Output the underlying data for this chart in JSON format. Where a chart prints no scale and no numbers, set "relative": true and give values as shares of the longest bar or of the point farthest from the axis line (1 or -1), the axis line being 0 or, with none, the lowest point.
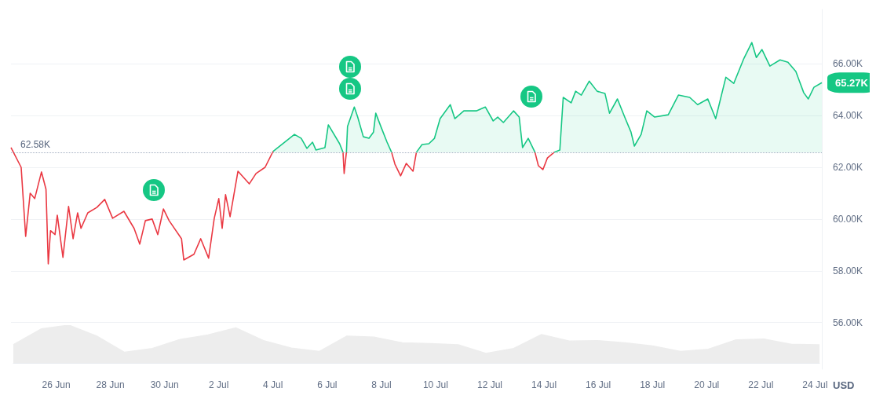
{
  "chart_data": [
    {
      "type": "area",
      "ylabel": "USD",
      "marker": "none",
      "grid": "y",
      "x": [
        "--06-24T08:00",
        "--06-24T17:00",
        "--06-24T21:00",
        "--06-25T01:00",
        "--06-25T05:00",
        "--06-25T11:00",
        "--06-25T15:00",
        "--06-25T17:00",
        "--06-25T19:00",
        "--06-25T23:00",
        "--06-26T01:00",
        "--06-26T06:00",
        "--06-26T11:00",
        "--06-26T15:00",
        "--06-26T19:00",
        "--06-26T22:00",
        "--06-27T04:00",
        "--06-27T12:00",
        "--06-27T19:00",
        "--06-28T02:00",
        "--06-28T12:00",
        "--06-28T21:00",
        "--06-29T02:00",
        "--06-29T07:00",
        "--06-29T13:00",
        "--06-29T18:00",
        "--06-29T23:00",
        "--06-30T04:00",
        "--06-30T15:00",
        "--06-30T17:00",
        "--07-01T02:00",
        "--07-01T08:00",
        "--07-01T15:00",
        "--07-01T20:00",
        "--07-02T00:00",
        "--07-02T03:00",
        "--07-02T06:00",
        "--07-02T10:00",
        "--07-02T17:00",
        "--07-03T03:00",
        "--07-03T09:00",
        "--07-03T17:00",
        "--07-04T00:00",
        "--07-04T19:00",
        "--07-05T01:00",
        "--07-05T06:00",
        "--07-05T11:00",
        "--07-05T14:00",
        "--07-05T22:00",
        "--07-06T01:00",
        "--07-06T11:00",
        "--07-06T14:00",
        "--07-06T15:00",
        "--07-06T17:00",
        "--07-06T18:00",
        "--07-07T00:00",
        "--07-07T03:00",
        "--07-07T08:00",
        "--07-07T13:00",
        "--07-07T17:00",
        "--07-07T19:00",
        "--07-08T00:00",
        "--07-08T05:00",
        "--07-08T09:00",
        "--07-08T12:00",
        "--07-08T17:00",
        "--07-08T22:00",
        "--07-09T04:00",
        "--07-09T07:00",
        "--07-09T12:00",
        "--07-09T18:00",
        "--07-09T23:00",
        "--07-10T04:00",
        "--07-10T13:00",
        "--07-10T17:00",
        "--07-11T01:00",
        "--07-11T12:00",
        "--07-11T20:00",
        "--07-12T03:00",
        "--07-12T07:00",
        "--07-12T12:00",
        "--07-12T21:00",
        "--07-13T02:00",
        "--07-13T05:00",
        "--07-13T10:00",
        "--07-13T16:00",
        "--07-13T19:00",
        "--07-13T23:00",
        "--07-14T03:00",
        "--07-14T09:00",
        "--07-14T14:00",
        "--07-14T17:00",
        "--07-15T00:00",
        "--07-15T04:00",
        "--07-15T09:00",
        "--07-15T16:00",
        "--07-15T23:00",
        "--07-16T06:00",
        "--07-16T10:00",
        "--07-16T17:00",
        "--07-17T00:00",
        "--07-17T05:00",
        "--07-17T08:00",
        "--07-17T14:00",
        "--07-17T19:00",
        "--07-18T02:00",
        "--07-18T14:00",
        "--07-18T23:00",
        "--07-19T09:00",
        "--07-19T16:00",
        "--07-20T01:00",
        "--07-20T08:00",
        "--07-20T17:00",
        "--07-21T00:00",
        "--07-21T09:00",
        "--07-21T16:00",
        "--07-21T20:00",
        "--07-22T01:00",
        "--07-22T08:00",
        "--07-22T17:00",
        "--07-23T00:00",
        "--07-23T07:00",
        "--07-23T14:00",
        "--07-23T18:00",
        "--07-23T23:00",
        "--07-24T06:00"
      ],
      "series": [
        {
          "color": "#16c784",
          "values": [
            null,
            null,
            null,
            null,
            null,
            null,
            null,
            null,
            null,
            null,
            null,
            null,
            null,
            null,
            null,
            null,
            null,
            null,
            null,
            null,
            null,
            null,
            null,
            null,
            null,
            null,
            null,
            null,
            null,
            null,
            null,
            null,
            null,
            null,
            null,
            null,
            null,
            null,
            null,
            null,
            null,
            null,
            62610,
            63270,
            63120,
            62730,
            62970,
            62670,
            62760,
            63640,
            62910,
            62580,
            null,
            62580,
            63580,
            64330,
            63940,
            63180,
            63120,
            63360,
            64090,
            63520,
            62970,
            62580,
            null,
            null,
            null,
            null,
            62580,
            62880,
            62910,
            63120,
            63880,
            64420,
            63880,
            64180,
            64180,
            64330,
            63790,
            63940,
            63730,
            64180,
            63940,
            62760,
            63120,
            62580,
            null,
            null,
            null,
            62580,
            62670,
            64700,
            64490,
            64940,
            64790,
            65330,
            64940,
            64850,
            64090,
            64640,
            63880,
            63360,
            62820,
            63270,
            64180,
            63940,
            64030,
            64790,
            64700,
            64420,
            64640,
            63880,
            65480,
            65240,
            66210,
            66820,
            66240,
            66550,
            65910,
            66150,
            66060,
            65700,
            64880,
            64640,
            65090,
            65270
          ]
        },
        {
          "type": "line",
          "color": "#ea3943",
          "values": [
            62760,
            62000,
            59330,
            61000,
            60790,
            61820,
            61150,
            58270,
            59550,
            59400,
            60150,
            58520,
            60490,
            59240,
            60240,
            59640,
            60240,
            60450,
            60760,
            60030,
            60300,
            59640,
            59030,
            59940,
            60000,
            59400,
            60390,
            59940,
            59240,
            58420,
            58640,
            59240,
            58490,
            60030,
            60790,
            59640,
            60940,
            60090,
            61850,
            61360,
            61760,
            62000,
            62610,
            null,
            null,
            null,
            null,
            null,
            null,
            null,
            null,
            62580,
            61760,
            62580,
            null,
            null,
            null,
            null,
            null,
            null,
            null,
            null,
            null,
            62580,
            62120,
            61670,
            62150,
            61850,
            62580,
            null,
            null,
            null,
            null,
            null,
            null,
            null,
            null,
            null,
            null,
            null,
            null,
            null,
            null,
            null,
            null,
            62580,
            62060,
            61910,
            62360,
            62580,
            null,
            null,
            null,
            null,
            null,
            null,
            null,
            null,
            null,
            null,
            null,
            null,
            null,
            null,
            null,
            null,
            null,
            null,
            null,
            null,
            null,
            null,
            null,
            null,
            null,
            null,
            null,
            null,
            null,
            null,
            null,
            null,
            null,
            null,
            null,
            null
          ]
        }
      ],
      "xlim": [
        "--06-24T08:00",
        "--07-24T06:00"
      ],
      "xticks": [
        {
          "value": "--06-26",
          "label": "26 Jun"
        },
        {
          "value": "--06-28",
          "label": "28 Jun"
        },
        {
          "value": "--06-30",
          "label": "30 Jun"
        },
        {
          "value": "--07-02",
          "label": "2 Jul"
        },
        {
          "value": "--07-04",
          "label": "4 Jul"
        },
        {
          "value": "--07-06",
          "label": "6 Jul"
        },
        {
          "value": "--07-08",
          "label": "8 Jul"
        },
        {
          "value": "--07-10",
          "label": "10 Jul"
        },
        {
          "value": "--07-12",
          "label": "12 Jul"
        },
        {
          "value": "--07-14",
          "label": "14 Jul"
        },
        {
          "value": "--07-16",
          "label": "16 Jul"
        },
        {
          "value": "--07-18",
          "label": "18 Jul"
        },
        {
          "value": "--07-20",
          "label": "20 Jul"
        },
        {
          "value": "--07-22",
          "label": "22 Jul"
        },
        {
          "value": "--07-24",
          "label": "24 Jul"
        }
      ],
      "ylim": [
        54200,
        68100
      ],
      "yticks": [
        {
          "value": 56000,
          "label": "56.00K"
        },
        {
          "value": 58000,
          "label": "58.00K"
        },
        {
          "value": 60000,
          "label": "60.00K"
        },
        {
          "value": 62000,
          "label": "62.00K"
        },
        {
          "value": 64000,
          "label": "64.00K"
        },
        {
          "value": 66000,
          "label": "66.00K"
        }
      ],
      "ref_lines": [
        {
          "axis": "y",
          "value": 62580,
          "label": "62.58K",
          "color": "#a6b0c3",
          "line_style": "dotted"
        }
      ],
      "annotations": [
        {
          "text": "65.27K",
          "x": "--07-24T06:00",
          "y": 65270
        }
      ]
    },
    {
      "type": "area",
      "relative": true,
      "color": "#ededed",
      "categories": [
        null,
        null,
        null,
        null,
        null,
        null,
        null,
        null,
        null,
        null,
        null,
        null,
        null,
        null,
        null,
        null,
        null,
        null,
        null,
        null,
        null,
        null,
        null,
        null,
        null,
        null,
        null,
        null,
        null,
        null
      ],
      "values": [
        0.48,
        0.9,
        1,
        0.71,
        0.28,
        0.38,
        0.62,
        0.74,
        0.93,
        0.59,
        0.39,
        0.3,
        0.71,
        0.68,
        0.53,
        0.51,
        0.48,
        0.25,
        0.38,
        0.75,
        0.58,
        0.59,
        0.53,
        0.45,
        0.3,
        0.36,
        0.61,
        0.63,
        0.49,
        0.48
      ]
    }
  ]
}
